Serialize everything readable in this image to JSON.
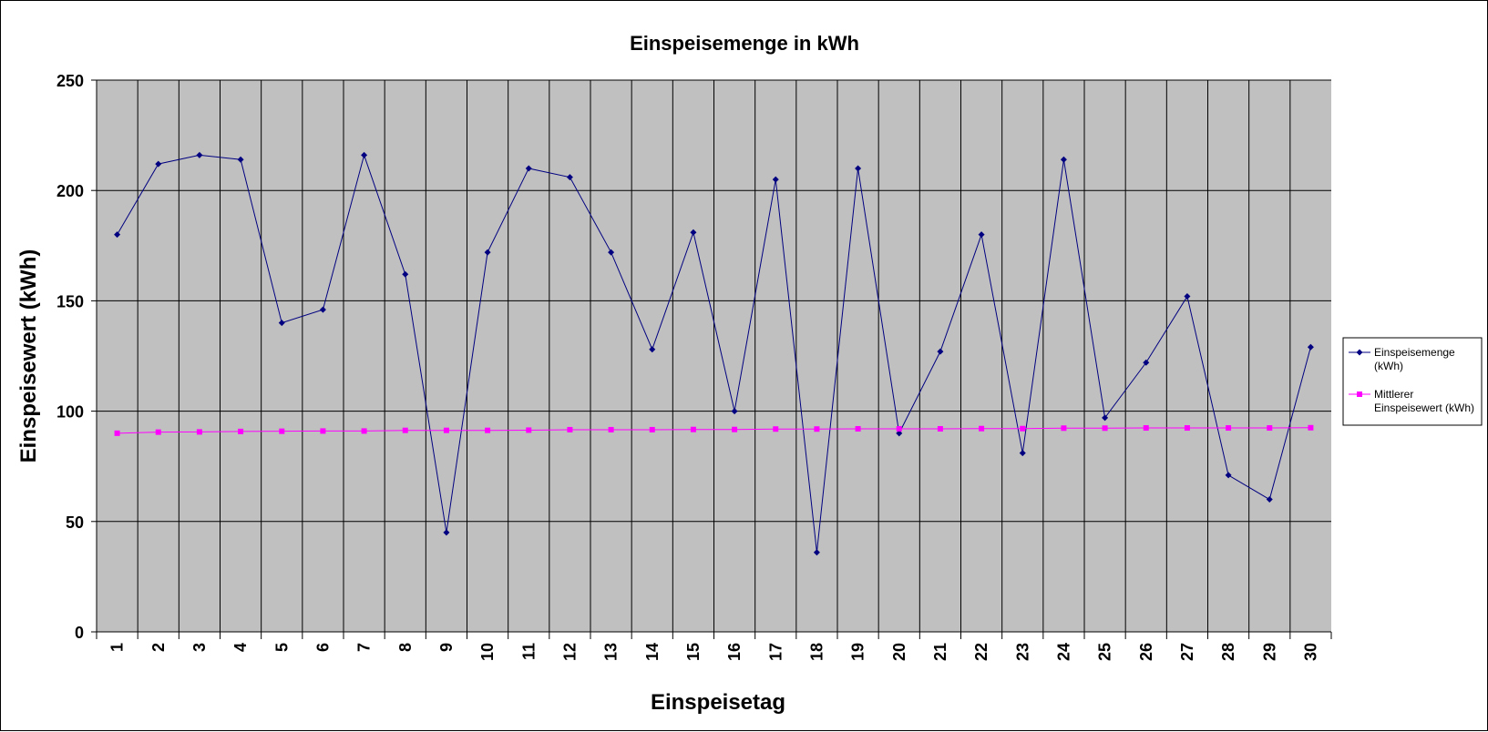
{
  "colors": {
    "plot_background": "#c0c0c0",
    "grid": "#000000",
    "series_1": "#000080",
    "series_2": "#ff00ff"
  },
  "chart_data": {
    "type": "line",
    "title": "Einspeisemenge in kWh",
    "xlabel": "Einspeisetag",
    "ylabel": "Einspeisewert  (kWh)",
    "ylim": [
      0,
      250
    ],
    "yticks": [
      0,
      50,
      100,
      150,
      200,
      250
    ],
    "categories": [
      "1",
      "2",
      "3",
      "4",
      "5",
      "6",
      "7",
      "8",
      "9",
      "10",
      "11",
      "12",
      "13",
      "14",
      "15",
      "16",
      "17",
      "18",
      "19",
      "20",
      "21",
      "22",
      "23",
      "24",
      "25",
      "26",
      "27",
      "28",
      "29",
      "30"
    ],
    "grid": true,
    "legend_position": "right",
    "series": [
      {
        "name": "Einspeisemenge (kWh)",
        "legend_lines": [
          "Einspeisemenge",
          "(kWh)"
        ],
        "marker": "diamond",
        "values": [
          180,
          212,
          216,
          214,
          140,
          146,
          216,
          162,
          45,
          172,
          210,
          206,
          172,
          128,
          181,
          100,
          205,
          36,
          210,
          90,
          127,
          180,
          81,
          214,
          97,
          122,
          152,
          71,
          60,
          129
        ]
      },
      {
        "name": "Mittlerer Einspeisewert (kWh)",
        "legend_lines": [
          "Mittlerer",
          "Einspeisewert (kWh)"
        ],
        "marker": "square",
        "values": [
          90,
          90.5,
          90.6,
          90.8,
          90.9,
          91,
          91,
          91.3,
          91.3,
          91.3,
          91.4,
          91.6,
          91.6,
          91.6,
          91.7,
          91.7,
          91.9,
          91.9,
          92,
          92,
          92,
          92.1,
          92.1,
          92.3,
          92.3,
          92.4,
          92.4,
          92.4,
          92.4,
          92.5
        ]
      }
    ]
  }
}
